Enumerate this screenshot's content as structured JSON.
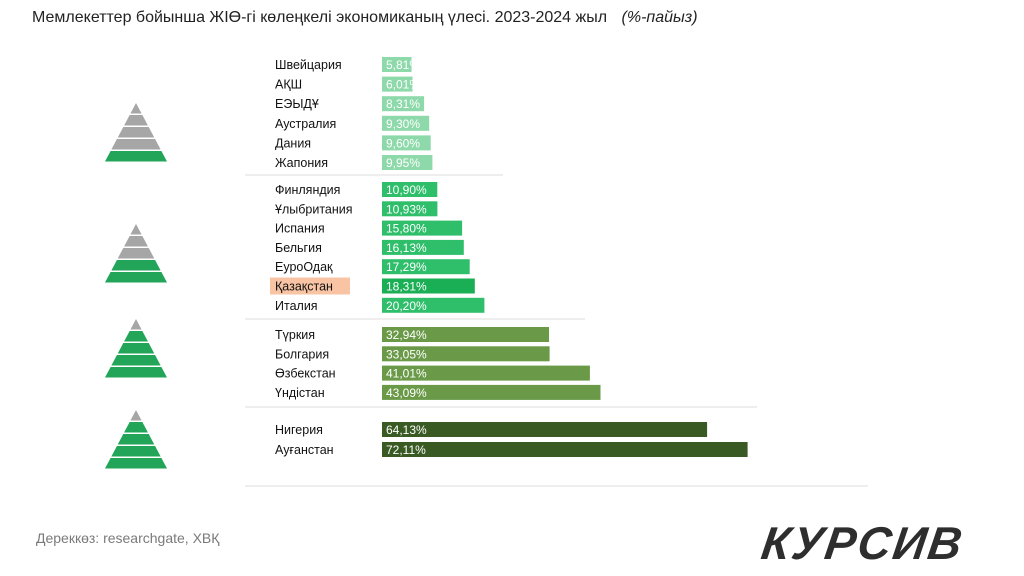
{
  "title": "Мемлекеттер бойынша ЖІӨ-гі көлеңкелі экономиканың үлесі. 2023-2024 жыл",
  "unit": "(%-пайыз)",
  "source": "Дереккөз:  researchgate, ХВҚ",
  "logo": "КУРСИВ",
  "colors": {
    "group1": "#8dd9a9",
    "group2": "#2fbf6b",
    "highlight_bar": "#1aae55",
    "group3": "#6a9a48",
    "group4": "#3a5a24",
    "pyramid_gray": "#a6a6a6",
    "pyramid_green": "#22a559",
    "highlight_label_bg": "#f8c4a4"
  },
  "chart_data": {
    "type": "bar",
    "orientation": "horizontal",
    "title": "Мемлекеттер бойынша ЖІӨ-гі көлеңкелі экономиканың үлесі. 2023-2024 жыл",
    "unit": "(%-пайыз)",
    "grid": false,
    "highlighted": "Қазақстан",
    "groups": [
      {
        "pyramid_green_levels": 1,
        "categories": [
          "Швейцария",
          "АҚШ",
          "ЕЭЫДҰ",
          "Аустралия",
          "Дания",
          "Жапония"
        ],
        "values": [
          5.81,
          6.01,
          8.31,
          9.3,
          9.6,
          9.95
        ],
        "labels": [
          "5,81%",
          "6,01%",
          "8,31%",
          "9,30%",
          "9,60%",
          "9,95%"
        ]
      },
      {
        "pyramid_green_levels": 2,
        "categories": [
          "Финляндия",
          "Ұлыбритания",
          "Испания",
          "Бельгия",
          "ЕуроОдақ",
          "Қазақстан",
          "Италия"
        ],
        "values": [
          10.9,
          10.93,
          15.8,
          16.13,
          17.29,
          18.31,
          20.2
        ],
        "labels": [
          "10,90%",
          "10,93%",
          "15,80%",
          "16,13%",
          "17,29%",
          "18,31%",
          "20,20%"
        ]
      },
      {
        "pyramid_green_levels": 4,
        "categories": [
          "Түркия",
          "Болгария",
          "Өзбекстан",
          "Үндістан"
        ],
        "values": [
          32.94,
          33.05,
          41.01,
          43.09
        ],
        "labels": [
          "32,94%",
          "33,05%",
          "41,01%",
          "43,09%"
        ]
      },
      {
        "pyramid_green_levels": 4,
        "categories": [
          "Нигерия",
          "Ауғанстан"
        ],
        "values": [
          64.13,
          72.11
        ],
        "labels": [
          "64,13%",
          "72,11%"
        ]
      }
    ]
  }
}
